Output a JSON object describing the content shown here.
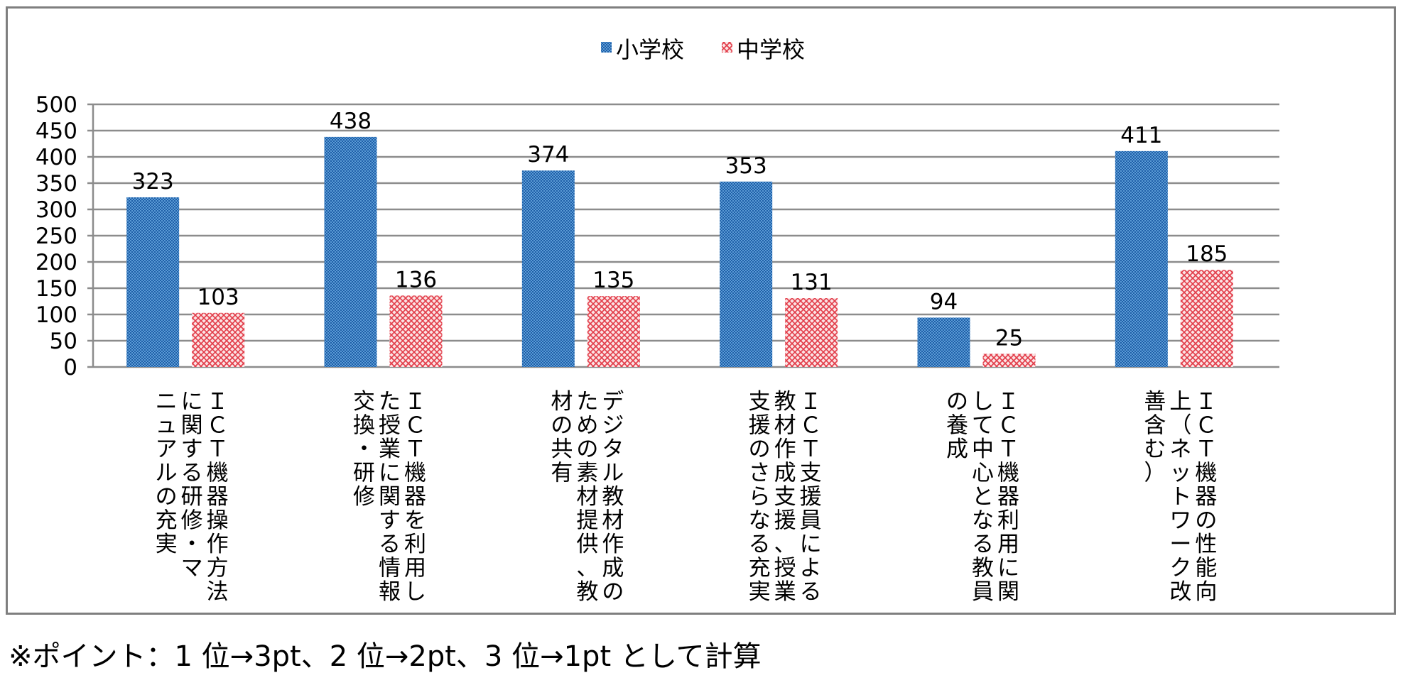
{
  "chart_data": {
    "type": "bar",
    "categories": [
      "ＩＣＴ機器操作方法に関する研修・マニュアルの充実",
      "ＩＣＴ機器を利用した授業に関する情報交換・研修",
      "デジタル教材作成のための素材提供、教材の共有",
      "ＩＣＴ支援員による教材作成支援、授業支援のさらなる充実",
      "ＩＣＴ機器利用に関して中心となる教員の養成",
      "ＩＣＴ機器の性能向上（ネットワーク改善含む）"
    ],
    "category_lines": [
      [
        "ＩＣＴ機器操作方法",
        "に関する研修・マ",
        "ニュアルの充実"
      ],
      [
        "ＩＣＴ機器を利用し",
        "た授業に関する情報",
        "交換・研修"
      ],
      [
        "デジタル教材作成の",
        "ための素材提供、教",
        "材の共有"
      ],
      [
        "ＩＣＴ支援員による",
        "教材作成支援、授業",
        "支援のさらなる充実"
      ],
      [
        "ＩＣＴ機器利用に関",
        "して中心となる教員",
        "の養成"
      ],
      [
        "ＩＣＴ機器の性能向",
        "上（ネットワーク改",
        "善含む）"
      ]
    ],
    "series": [
      {
        "name": "小学校",
        "values": [
          323,
          438,
          374,
          353,
          94,
          411
        ],
        "color": "#2e75c6",
        "pattern": "checker"
      },
      {
        "name": "中学校",
        "values": [
          103,
          136,
          135,
          131,
          25,
          185
        ],
        "color": "#e8505b",
        "pattern": "cross"
      }
    ],
    "ylim": [
      0,
      500
    ],
    "yticks": [
      0,
      50,
      100,
      150,
      200,
      250,
      300,
      350,
      400,
      450,
      500
    ],
    "grid": true,
    "legend": "top-center",
    "title": "",
    "xlabel": "",
    "ylabel": ""
  },
  "footnote": "※ポイント：1 位→3pt、2 位→2pt、3 位→1pt として計算"
}
